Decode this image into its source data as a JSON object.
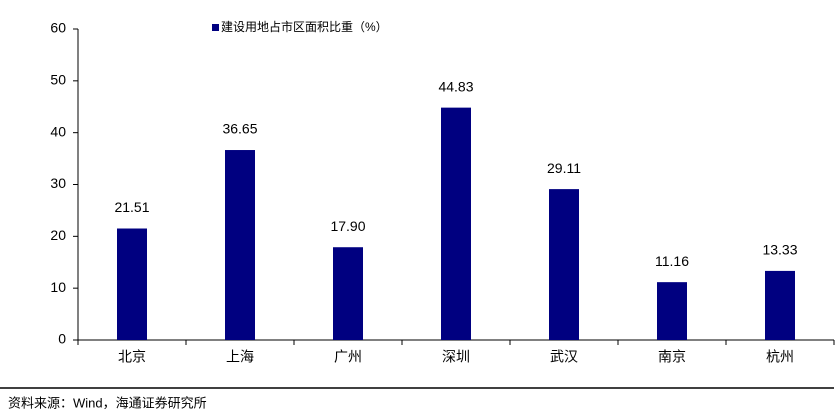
{
  "chart_data": {
    "type": "bar",
    "categories": [
      "北京",
      "上海",
      "广州",
      "深圳",
      "武汉",
      "南京",
      "杭州"
    ],
    "series": [
      {
        "name": "建设用地占市区面积比重（%）",
        "color": "#000080",
        "values": [
          21.51,
          36.65,
          17.9,
          44.83,
          29.11,
          11.16,
          13.33
        ],
        "value_labels": [
          "21.51",
          "36.65",
          "17.90",
          "44.83",
          "29.11",
          "11.16",
          "13.33"
        ]
      }
    ],
    "ylim": [
      0,
      60
    ],
    "yticks": [
      0,
      10,
      20,
      30,
      40,
      50,
      60
    ],
    "grid": false,
    "legend": "top",
    "source": "资料来源：Wind，海通证券研究所"
  }
}
